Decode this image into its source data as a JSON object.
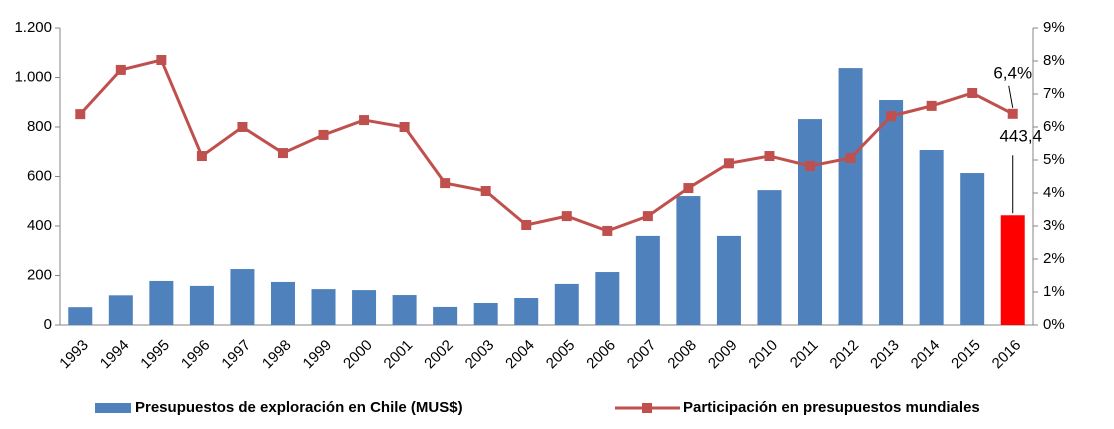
{
  "chart_data": {
    "type": "bar-line",
    "categories": [
      "1993",
      "1994",
      "1995",
      "1996",
      "1997",
      "1998",
      "1999",
      "2000",
      "2001",
      "2002",
      "2003",
      "2004",
      "2005",
      "2006",
      "2007",
      "2008",
      "2009",
      "2010",
      "2011",
      "2012",
      "2013",
      "2014",
      "2015",
      "2016"
    ],
    "series": [
      {
        "name": "Presupuestos de exploración en Chile (MUS$)",
        "type": "bar",
        "color": "#4f81bd",
        "colors": [
          "#4f81bd",
          "#4f81bd",
          "#4f81bd",
          "#4f81bd",
          "#4f81bd",
          "#4f81bd",
          "#4f81bd",
          "#4f81bd",
          "#4f81bd",
          "#4f81bd",
          "#4f81bd",
          "#4f81bd",
          "#4f81bd",
          "#4f81bd",
          "#4f81bd",
          "#4f81bd",
          "#4f81bd",
          "#4f81bd",
          "#4f81bd",
          "#4f81bd",
          "#4f81bd",
          "#4f81bd",
          "#4f81bd",
          "#ff0000"
        ],
        "values": [
          72,
          120,
          178,
          158,
          226,
          174,
          145,
          141,
          121,
          73,
          89,
          109,
          166,
          214,
          360,
          521,
          360,
          545,
          832,
          1038,
          909,
          707,
          614,
          443.4
        ],
        "value_labels": [
          null,
          null,
          null,
          null,
          null,
          null,
          null,
          null,
          null,
          null,
          null,
          null,
          null,
          null,
          null,
          null,
          null,
          null,
          null,
          null,
          null,
          null,
          null,
          "443,4"
        ]
      },
      {
        "name": "Participación en presupuestos mundiales",
        "type": "line",
        "axis": "y2",
        "color": "#c0504d",
        "values": [
          6.39,
          7.73,
          8.03,
          5.12,
          6.0,
          5.21,
          5.76,
          6.21,
          6.0,
          4.3,
          4.06,
          3.03,
          3.3,
          2.85,
          3.3,
          4.15,
          4.9,
          5.12,
          4.82,
          5.06,
          6.33,
          6.64,
          7.03,
          6.4
        ],
        "value_labels": [
          null,
          null,
          null,
          null,
          null,
          null,
          null,
          null,
          null,
          null,
          null,
          null,
          null,
          null,
          null,
          null,
          null,
          null,
          null,
          null,
          null,
          null,
          null,
          "6,4%"
        ]
      }
    ],
    "ylim": [
      0,
      1200
    ],
    "yticks": [
      0,
      200,
      400,
      600,
      800,
      {
        "value": 1000,
        "label": "1.000"
      },
      {
        "value": 1200,
        "label": "1.200"
      }
    ],
    "y2lim": [
      0,
      9
    ],
    "y2ticks": [
      {
        "value": 0,
        "label": "0%"
      },
      {
        "value": 1,
        "label": "1%"
      },
      {
        "value": 2,
        "label": "2%"
      },
      {
        "value": 3,
        "label": "3%"
      },
      {
        "value": 4,
        "label": "4%"
      },
      {
        "value": 5,
        "label": "5%"
      },
      {
        "value": 6,
        "label": "6%"
      },
      {
        "value": 7,
        "label": "7%"
      },
      {
        "value": 8,
        "label": "8%"
      },
      {
        "value": 9,
        "label": "9%"
      }
    ],
    "grid": false,
    "legend": "bottom"
  }
}
